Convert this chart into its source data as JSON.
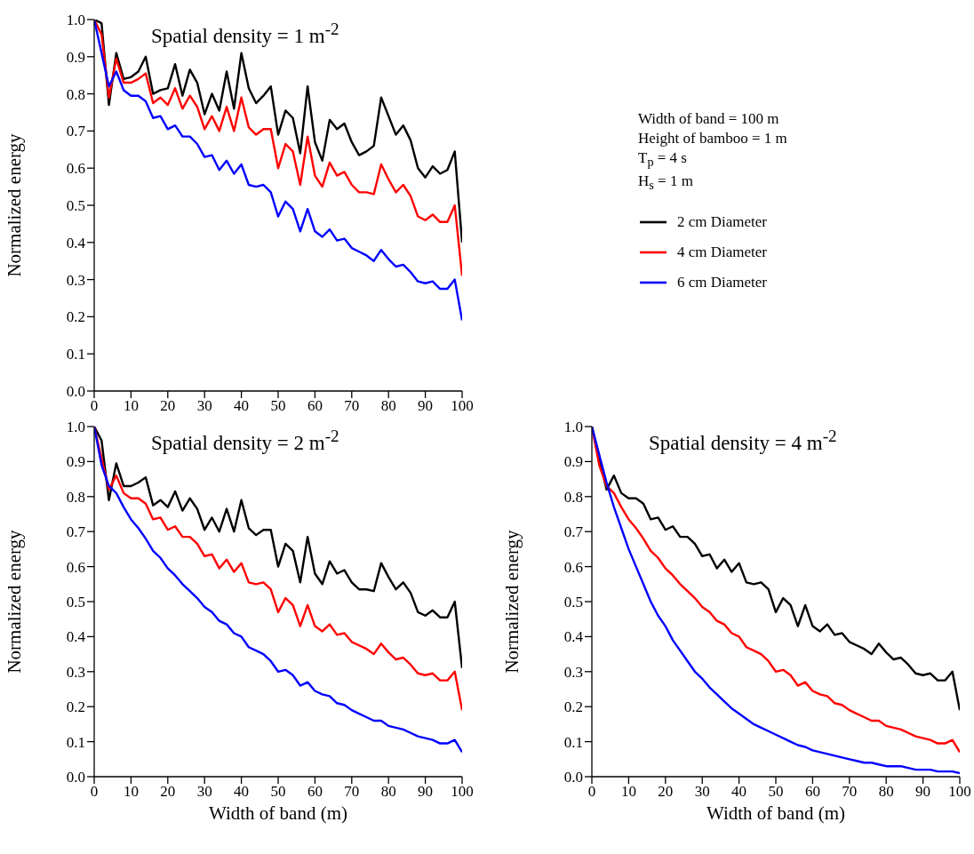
{
  "chart_data": [
    {
      "type": "line",
      "title": "Spatial density = 1 m$^{-2}$",
      "ylabel": "Normalized energy",
      "annotations": [
        "Width of band = 100 m",
        "Height of bamboo = 1 m",
        "T$_{p}$ = 4 s",
        "H$_{s}$ = 1 m"
      ],
      "legend": "right",
      "x": [
        0,
        2,
        4,
        6,
        8,
        10,
        12,
        14,
        16,
        18,
        20,
        22,
        24,
        26,
        28,
        30,
        32,
        34,
        36,
        38,
        40,
        42,
        44,
        46,
        48,
        50,
        52,
        54,
        56,
        58,
        60,
        62,
        64,
        66,
        68,
        70,
        72,
        74,
        76,
        78,
        80,
        82,
        84,
        86,
        88,
        90,
        92,
        94,
        96,
        98,
        100
      ],
      "xlim": [
        0,
        100
      ],
      "xticks": [
        0,
        10,
        20,
        30,
        40,
        50,
        60,
        70,
        80,
        90,
        100
      ],
      "ylim": [
        0,
        1
      ],
      "yticks": [
        {
          "value": 0,
          "label": "0.0"
        },
        {
          "value": 0.1,
          "label": "0.1"
        },
        {
          "value": 0.2,
          "label": "0.2"
        },
        {
          "value": 0.3,
          "label": "0.3"
        },
        {
          "value": 0.4,
          "label": "0.4"
        },
        {
          "value": 0.5,
          "label": "0.5"
        },
        {
          "value": 0.6,
          "label": "0.6"
        },
        {
          "value": 0.7,
          "label": "0.7"
        },
        {
          "value": 0.8,
          "label": "0.8"
        },
        {
          "value": 0.9,
          "label": "0.9"
        },
        {
          "value": 1,
          "label": "1.0"
        }
      ],
      "series": [
        {
          "name": "2 cm Diameter",
          "color": "#000000",
          "values": [
            1.0,
            0.99,
            0.77,
            0.91,
            0.84,
            0.845,
            0.86,
            0.9,
            0.8,
            0.81,
            0.815,
            0.88,
            0.795,
            0.865,
            0.83,
            0.745,
            0.8,
            0.755,
            0.86,
            0.76,
            0.91,
            0.815,
            0.775,
            0.795,
            0.82,
            0.69,
            0.755,
            0.735,
            0.64,
            0.82,
            0.67,
            0.62,
            0.73,
            0.705,
            0.72,
            0.67,
            0.635,
            0.645,
            0.66,
            0.79,
            0.74,
            0.69,
            0.715,
            0.675,
            0.6,
            0.575,
            0.605,
            0.585,
            0.595,
            0.645,
            0.4
          ]
        },
        {
          "name": "4 cm Diameter",
          "color": "#ff0000",
          "values": [
            1.0,
            0.96,
            0.79,
            0.895,
            0.83,
            0.83,
            0.84,
            0.855,
            0.775,
            0.79,
            0.77,
            0.815,
            0.76,
            0.795,
            0.765,
            0.705,
            0.74,
            0.7,
            0.765,
            0.7,
            0.79,
            0.71,
            0.69,
            0.705,
            0.705,
            0.6,
            0.665,
            0.645,
            0.555,
            0.685,
            0.58,
            0.55,
            0.615,
            0.58,
            0.59,
            0.555,
            0.535,
            0.535,
            0.53,
            0.61,
            0.57,
            0.535,
            0.555,
            0.525,
            0.47,
            0.46,
            0.475,
            0.455,
            0.455,
            0.5,
            0.31
          ]
        },
        {
          "name": "6 cm Diameter",
          "color": "#0000ff",
          "values": [
            1.0,
            0.91,
            0.82,
            0.86,
            0.81,
            0.795,
            0.795,
            0.78,
            0.735,
            0.74,
            0.705,
            0.715,
            0.685,
            0.685,
            0.665,
            0.63,
            0.635,
            0.595,
            0.62,
            0.585,
            0.61,
            0.555,
            0.55,
            0.555,
            0.535,
            0.47,
            0.51,
            0.49,
            0.43,
            0.49,
            0.43,
            0.415,
            0.435,
            0.405,
            0.41,
            0.385,
            0.375,
            0.365,
            0.35,
            0.38,
            0.355,
            0.335,
            0.34,
            0.32,
            0.295,
            0.29,
            0.295,
            0.275,
            0.275,
            0.3,
            0.19
          ]
        }
      ]
    },
    {
      "type": "line",
      "title": "Spatial density = 2 m$^{-2}$",
      "xlabel": "Width of band (m)",
      "ylabel": "Normalized energy",
      "x": [
        0,
        2,
        4,
        6,
        8,
        10,
        12,
        14,
        16,
        18,
        20,
        22,
        24,
        26,
        28,
        30,
        32,
        34,
        36,
        38,
        40,
        42,
        44,
        46,
        48,
        50,
        52,
        54,
        56,
        58,
        60,
        62,
        64,
        66,
        68,
        70,
        72,
        74,
        76,
        78,
        80,
        82,
        84,
        86,
        88,
        90,
        92,
        94,
        96,
        98,
        100
      ],
      "xlim": [
        0,
        100
      ],
      "xticks": [
        0,
        10,
        20,
        30,
        40,
        50,
        60,
        70,
        80,
        90,
        100
      ],
      "ylim": [
        0,
        1
      ],
      "yticks": [
        {
          "value": 0,
          "label": "0.0"
        },
        {
          "value": 0.1,
          "label": "0.1"
        },
        {
          "value": 0.2,
          "label": "0.2"
        },
        {
          "value": 0.3,
          "label": "0.3"
        },
        {
          "value": 0.4,
          "label": "0.4"
        },
        {
          "value": 0.5,
          "label": "0.5"
        },
        {
          "value": 0.6,
          "label": "0.6"
        },
        {
          "value": 0.7,
          "label": "0.7"
        },
        {
          "value": 0.8,
          "label": "0.8"
        },
        {
          "value": 0.9,
          "label": "0.9"
        },
        {
          "value": 1,
          "label": "1.0"
        }
      ],
      "series": [
        {
          "color": "#000000",
          "values": [
            1.0,
            0.96,
            0.79,
            0.895,
            0.83,
            0.83,
            0.84,
            0.855,
            0.775,
            0.79,
            0.77,
            0.815,
            0.76,
            0.795,
            0.765,
            0.705,
            0.74,
            0.7,
            0.765,
            0.7,
            0.79,
            0.71,
            0.69,
            0.705,
            0.705,
            0.6,
            0.665,
            0.645,
            0.555,
            0.685,
            0.58,
            0.55,
            0.615,
            0.58,
            0.59,
            0.555,
            0.535,
            0.535,
            0.53,
            0.61,
            0.57,
            0.535,
            0.555,
            0.525,
            0.47,
            0.46,
            0.475,
            0.455,
            0.455,
            0.5,
            0.31
          ]
        },
        {
          "color": "#ff0000",
          "values": [
            1.0,
            0.91,
            0.82,
            0.86,
            0.81,
            0.795,
            0.795,
            0.78,
            0.735,
            0.74,
            0.705,
            0.715,
            0.685,
            0.685,
            0.665,
            0.63,
            0.635,
            0.595,
            0.62,
            0.585,
            0.61,
            0.555,
            0.55,
            0.555,
            0.535,
            0.47,
            0.51,
            0.49,
            0.43,
            0.49,
            0.43,
            0.415,
            0.435,
            0.405,
            0.41,
            0.385,
            0.375,
            0.365,
            0.35,
            0.38,
            0.355,
            0.335,
            0.34,
            0.32,
            0.295,
            0.29,
            0.295,
            0.275,
            0.275,
            0.3,
            0.19
          ]
        },
        {
          "color": "#0000ff",
          "values": [
            1.0,
            0.89,
            0.83,
            0.81,
            0.77,
            0.735,
            0.71,
            0.68,
            0.645,
            0.625,
            0.595,
            0.575,
            0.55,
            0.53,
            0.51,
            0.485,
            0.47,
            0.445,
            0.435,
            0.41,
            0.4,
            0.37,
            0.36,
            0.35,
            0.33,
            0.3,
            0.305,
            0.29,
            0.26,
            0.27,
            0.245,
            0.235,
            0.23,
            0.21,
            0.205,
            0.19,
            0.18,
            0.17,
            0.16,
            0.16,
            0.145,
            0.14,
            0.135,
            0.125,
            0.115,
            0.11,
            0.105,
            0.095,
            0.095,
            0.105,
            0.07
          ]
        }
      ]
    },
    {
      "type": "line",
      "title": "Spatial density = 4 m$^{-2}$",
      "xlabel": "Width of band (m)",
      "ylabel": "Normalized energy",
      "x": [
        0,
        2,
        4,
        6,
        8,
        10,
        12,
        14,
        16,
        18,
        20,
        22,
        24,
        26,
        28,
        30,
        32,
        34,
        36,
        38,
        40,
        42,
        44,
        46,
        48,
        50,
        52,
        54,
        56,
        58,
        60,
        62,
        64,
        66,
        68,
        70,
        72,
        74,
        76,
        78,
        80,
        82,
        84,
        86,
        88,
        90,
        92,
        94,
        96,
        98,
        100
      ],
      "xlim": [
        0,
        100
      ],
      "xticks": [
        0,
        10,
        20,
        30,
        40,
        50,
        60,
        70,
        80,
        90,
        100
      ],
      "ylim": [
        0,
        1
      ],
      "yticks": [
        {
          "value": 0,
          "label": "0.0"
        },
        {
          "value": 0.1,
          "label": "0.1"
        },
        {
          "value": 0.2,
          "label": "0.2"
        },
        {
          "value": 0.3,
          "label": "0.3"
        },
        {
          "value": 0.4,
          "label": "0.4"
        },
        {
          "value": 0.5,
          "label": "0.5"
        },
        {
          "value": 0.6,
          "label": "0.6"
        },
        {
          "value": 0.7,
          "label": "0.7"
        },
        {
          "value": 0.8,
          "label": "0.8"
        },
        {
          "value": 0.9,
          "label": "0.9"
        },
        {
          "value": 1,
          "label": "1.0"
        }
      ],
      "series": [
        {
          "color": "#000000",
          "values": [
            1.0,
            0.91,
            0.82,
            0.86,
            0.81,
            0.795,
            0.795,
            0.78,
            0.735,
            0.74,
            0.705,
            0.715,
            0.685,
            0.685,
            0.665,
            0.63,
            0.635,
            0.595,
            0.62,
            0.585,
            0.61,
            0.555,
            0.55,
            0.555,
            0.535,
            0.47,
            0.51,
            0.49,
            0.43,
            0.49,
            0.43,
            0.415,
            0.435,
            0.405,
            0.41,
            0.385,
            0.375,
            0.365,
            0.35,
            0.38,
            0.355,
            0.335,
            0.34,
            0.32,
            0.295,
            0.29,
            0.295,
            0.275,
            0.275,
            0.3,
            0.19
          ]
        },
        {
          "color": "#ff0000",
          "values": [
            1.0,
            0.89,
            0.83,
            0.81,
            0.77,
            0.735,
            0.71,
            0.68,
            0.645,
            0.625,
            0.595,
            0.575,
            0.55,
            0.53,
            0.51,
            0.485,
            0.47,
            0.445,
            0.435,
            0.41,
            0.4,
            0.37,
            0.36,
            0.35,
            0.33,
            0.3,
            0.305,
            0.29,
            0.26,
            0.27,
            0.245,
            0.235,
            0.23,
            0.21,
            0.205,
            0.19,
            0.18,
            0.17,
            0.16,
            0.16,
            0.145,
            0.14,
            0.135,
            0.125,
            0.115,
            0.11,
            0.105,
            0.095,
            0.095,
            0.105,
            0.07
          ]
        },
        {
          "color": "#0000ff",
          "values": [
            1.0,
            0.92,
            0.84,
            0.77,
            0.71,
            0.65,
            0.6,
            0.55,
            0.5,
            0.46,
            0.43,
            0.39,
            0.36,
            0.33,
            0.3,
            0.28,
            0.255,
            0.235,
            0.215,
            0.195,
            0.18,
            0.165,
            0.15,
            0.14,
            0.13,
            0.12,
            0.11,
            0.1,
            0.09,
            0.085,
            0.075,
            0.07,
            0.065,
            0.06,
            0.055,
            0.05,
            0.045,
            0.04,
            0.04,
            0.035,
            0.03,
            0.03,
            0.03,
            0.025,
            0.02,
            0.02,
            0.02,
            0.015,
            0.015,
            0.015,
            0.01
          ]
        }
      ]
    }
  ]
}
